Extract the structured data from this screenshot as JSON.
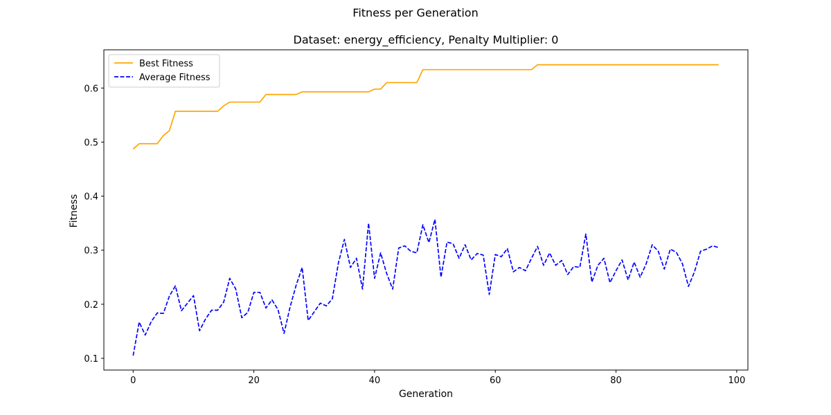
{
  "figure": {
    "title": "Fitness per Generation"
  },
  "chart_data": {
    "type": "line",
    "title": "Dataset: energy_efficiency, Penalty Multiplier: 0",
    "xlabel": "Generation",
    "ylabel": "Fitness",
    "xlim": [
      -4.85,
      101.85
    ],
    "ylim": [
      0.0783,
      0.6707
    ],
    "x_ticks": [
      0,
      20,
      40,
      60,
      80,
      100
    ],
    "y_ticks": [
      0.1,
      0.2,
      0.3,
      0.4,
      0.5,
      0.6
    ],
    "x_tick_labels": [
      "0",
      "20",
      "40",
      "60",
      "80",
      "100"
    ],
    "y_tick_labels": [
      "0.1",
      "0.2",
      "0.3",
      "0.4",
      "0.5",
      "0.6"
    ],
    "grid": false,
    "legend_position": "upper-left",
    "series": [
      {
        "name": "Best Fitness",
        "color": "#ffa500",
        "style": "solid",
        "values": [
          0.487,
          0.497,
          0.497,
          0.497,
          0.497,
          0.512,
          0.521,
          0.557,
          0.557,
          0.557,
          0.557,
          0.557,
          0.557,
          0.557,
          0.557,
          0.567,
          0.574,
          0.574,
          0.574,
          0.574,
          0.574,
          0.574,
          0.588,
          0.588,
          0.588,
          0.588,
          0.588,
          0.588,
          0.593,
          0.593,
          0.593,
          0.593,
          0.593,
          0.593,
          0.593,
          0.593,
          0.593,
          0.593,
          0.593,
          0.593,
          0.598,
          0.598,
          0.61,
          0.61,
          0.61,
          0.61,
          0.61,
          0.61,
          0.634,
          0.634,
          0.634,
          0.634,
          0.634,
          0.634,
          0.634,
          0.634,
          0.634,
          0.634,
          0.634,
          0.634,
          0.634,
          0.634,
          0.634,
          0.634,
          0.634,
          0.634,
          0.634,
          0.643,
          0.643,
          0.643,
          0.643,
          0.643,
          0.643,
          0.643,
          0.643,
          0.643,
          0.643,
          0.643,
          0.643,
          0.643,
          0.643,
          0.643,
          0.643,
          0.643,
          0.643,
          0.643,
          0.643,
          0.643,
          0.643,
          0.643,
          0.643,
          0.643,
          0.643,
          0.643,
          0.643,
          0.643,
          0.643,
          0.643
        ]
      },
      {
        "name": "Average Fitness",
        "color": "#0000ff",
        "style": "dashed",
        "values": [
          0.105,
          0.167,
          0.143,
          0.168,
          0.184,
          0.183,
          0.215,
          0.234,
          0.188,
          0.202,
          0.216,
          0.151,
          0.173,
          0.189,
          0.189,
          0.204,
          0.248,
          0.228,
          0.175,
          0.185,
          0.222,
          0.222,
          0.193,
          0.208,
          0.19,
          0.146,
          0.195,
          0.235,
          0.268,
          0.17,
          0.186,
          0.202,
          0.197,
          0.21,
          0.276,
          0.32,
          0.268,
          0.285,
          0.228,
          0.35,
          0.248,
          0.295,
          0.257,
          0.228,
          0.304,
          0.308,
          0.298,
          0.295,
          0.347,
          0.314,
          0.357,
          0.25,
          0.315,
          0.312,
          0.285,
          0.31,
          0.282,
          0.294,
          0.291,
          0.218,
          0.292,
          0.288,
          0.303,
          0.26,
          0.268,
          0.262,
          0.285,
          0.307,
          0.272,
          0.295,
          0.272,
          0.281,
          0.255,
          0.27,
          0.268,
          0.33,
          0.241,
          0.272,
          0.285,
          0.24,
          0.262,
          0.282,
          0.245,
          0.278,
          0.25,
          0.275,
          0.31,
          0.298,
          0.265,
          0.302,
          0.296,
          0.275,
          0.233,
          0.26,
          0.298,
          0.302,
          0.308,
          0.305
        ]
      }
    ]
  }
}
